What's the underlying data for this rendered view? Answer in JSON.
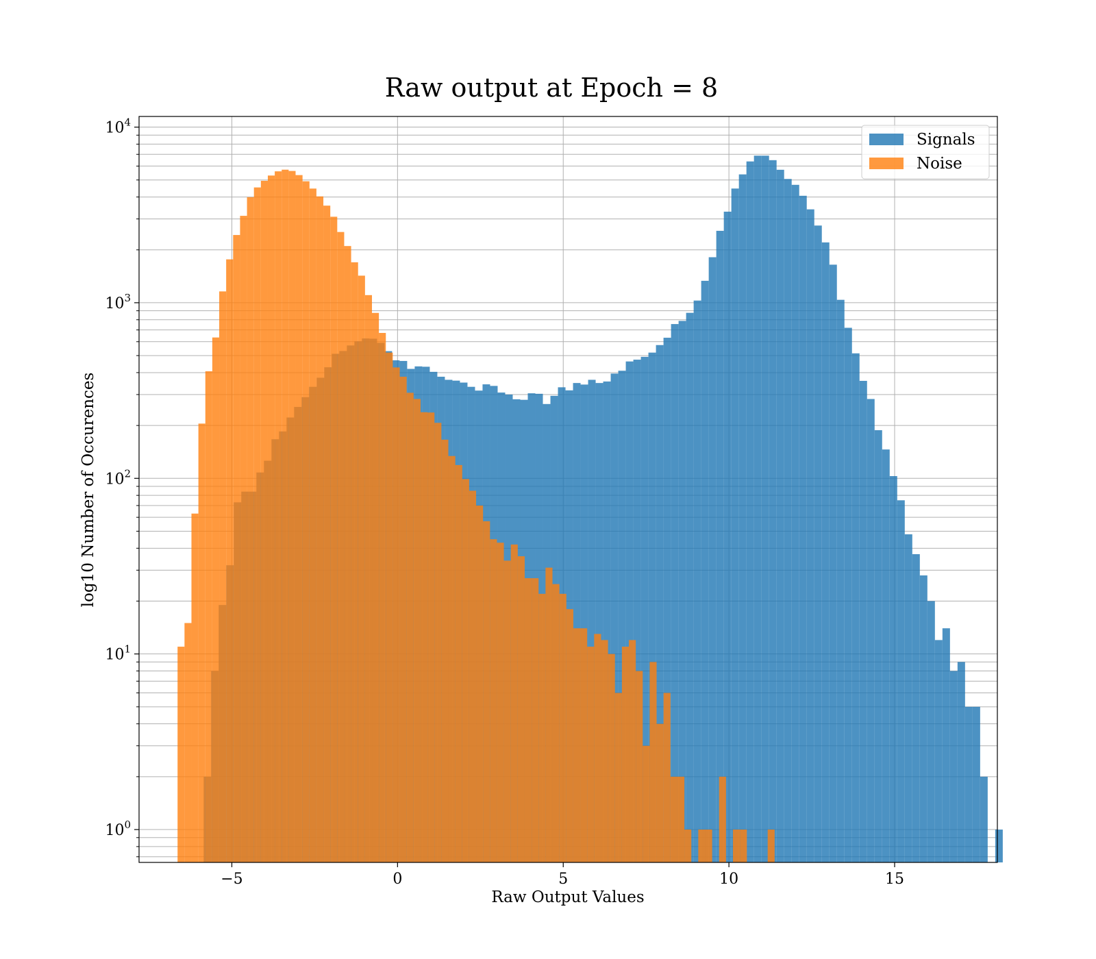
{
  "chart_data": {
    "type": "histogram",
    "title": "Raw output at Epoch = 8",
    "xlabel": "Raw Output Values",
    "ylabel": "log10 Number of Occurences",
    "xscale": "linear",
    "yscale": "log",
    "xlim": [
      -7.8,
      18.1
    ],
    "ylim": [
      0.65,
      11500
    ],
    "x_ticks": [
      -5,
      0,
      5,
      10,
      15
    ],
    "x_tick_labels": [
      "−5",
      "0",
      "5",
      "10",
      "15"
    ],
    "y_ticks": [
      1,
      10,
      100,
      1000,
      10000
    ],
    "y_tick_labels": [
      {
        "base": "10",
        "exp": "0"
      },
      {
        "base": "10",
        "exp": "1"
      },
      {
        "base": "10",
        "exp": "2"
      },
      {
        "base": "10",
        "exp": "3"
      },
      {
        "base": "10",
        "exp": "4"
      }
    ],
    "grid": true,
    "legend_position": "top-right",
    "series": [
      {
        "name": "Signals",
        "color": "#1f77b4",
        "opacity": 0.8,
        "bin_start": -5.852,
        "bin_width": 0.2275,
        "counts": [
          2,
          8,
          19,
          32,
          73,
          84,
          84,
          108,
          126,
          167,
          185,
          222,
          255,
          290,
          332,
          374,
          429,
          512,
          531,
          571,
          603,
          626,
          624,
          591,
          530,
          470,
          466,
          420,
          434,
          432,
          404,
          379,
          364,
          360,
          351,
          332,
          316,
          343,
          336,
          308,
          300,
          282,
          280,
          305,
          303,
          265,
          295,
          330,
          317,
          349,
          342,
          364,
          349,
          356,
          395,
          410,
          463,
          474,
          492,
          520,
          574,
          632,
          756,
          788,
          876,
          1029,
          1333,
          1816,
          2567,
          3300,
          4469,
          5380,
          6376,
          6877,
          6876,
          6483,
          5716,
          5067,
          4692,
          4065,
          3402,
          2751,
          2205,
          1647,
          1039,
          720,
          515,
          359,
          283,
          188,
          146,
          103,
          75,
          48,
          37,
          28,
          20,
          12,
          14,
          8,
          9,
          5,
          5,
          2,
          0,
          1
        ]
      },
      {
        "name": "Noise",
        "color": "#ff7f0e",
        "opacity": 0.8,
        "bin_start": -6.638,
        "bin_width": 0.2095,
        "counts": [
          11,
          15,
          63,
          205,
          407,
          634,
          1160,
          1766,
          2430,
          3125,
          3990,
          4534,
          4946,
          5300,
          5600,
          5723,
          5628,
          5331,
          4916,
          4467,
          4031,
          3572,
          3088,
          2528,
          2103,
          1699,
          1426,
          1105,
          875,
          673,
          520,
          428,
          379,
          307,
          283,
          238,
          237,
          207,
          166,
          134,
          119,
          99,
          85,
          70,
          57,
          45,
          43,
          34,
          42,
          36,
          27,
          27,
          22,
          31,
          25,
          22,
          18,
          14,
          14,
          11,
          13,
          12,
          10,
          6,
          11,
          12,
          8,
          3,
          9,
          4,
          6,
          2,
          2,
          1,
          0,
          1,
          1,
          0,
          2,
          0,
          1,
          1,
          0,
          0,
          0,
          1,
          0
        ]
      }
    ]
  }
}
